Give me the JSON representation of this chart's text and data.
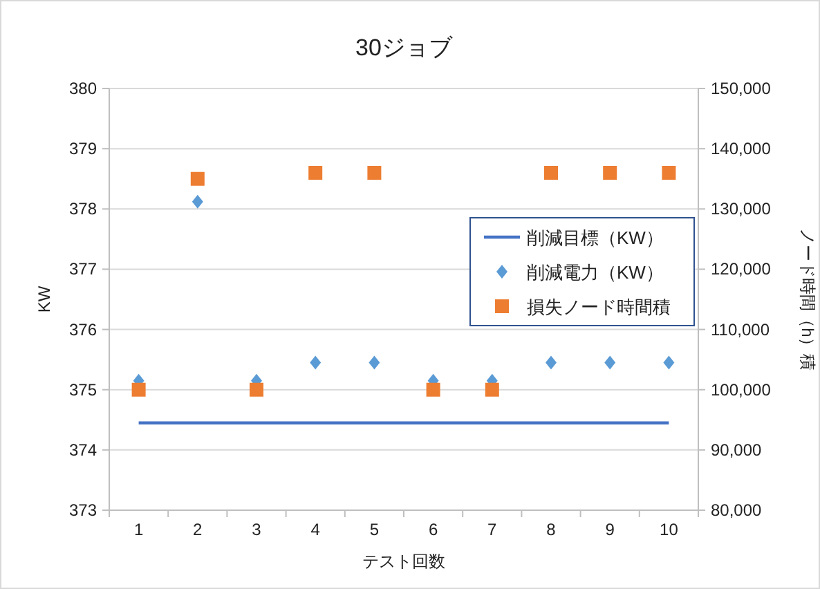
{
  "chart_data": {
    "type": "scatter",
    "title": "30ジョブ",
    "xlabel": "テスト回数",
    "ylabel": "KW",
    "y2label": "ノード時間（h）積",
    "categories": [
      "1",
      "2",
      "3",
      "4",
      "5",
      "6",
      "7",
      "8",
      "9",
      "10"
    ],
    "series": [
      {
        "name": "削減目標（KW）",
        "type": "line",
        "color": "#4472c4",
        "marker": "none",
        "line_style": "solid",
        "values": [
          374.45,
          374.45,
          374.45,
          374.45,
          374.45,
          374.45,
          374.45,
          374.45,
          374.45,
          374.45
        ]
      },
      {
        "name": "削減電力（KW）",
        "color": "#5b9bd5",
        "marker": "diamond",
        "values": [
          375.15,
          378.12,
          375.15,
          375.45,
          375.45,
          375.15,
          375.15,
          375.45,
          375.45,
          375.45
        ]
      },
      {
        "name": "損失ノード時間積",
        "color": "#ed7d31",
        "marker": "square",
        "axis": "y2",
        "values": [
          100000,
          135000,
          100000,
          136000,
          136000,
          100000,
          100000,
          136000,
          136000,
          136000
        ]
      }
    ],
    "ylim": [
      373,
      380
    ],
    "yticks": [
      373,
      374,
      375,
      376,
      377,
      378,
      379,
      380
    ],
    "y2lim": [
      80000,
      150000
    ],
    "y2ticks": [
      {
        "value": 80000,
        "label": "80,000"
      },
      {
        "value": 90000,
        "label": "90,000"
      },
      {
        "value": 100000,
        "label": "100,000"
      },
      {
        "value": 110000,
        "label": "110,000"
      },
      {
        "value": 120000,
        "label": "120,000"
      },
      {
        "value": 130000,
        "label": "130,000"
      },
      {
        "value": 140000,
        "label": "140,000"
      },
      {
        "value": 150000,
        "label": "150,000"
      }
    ],
    "grid": "y",
    "legend": "right"
  }
}
